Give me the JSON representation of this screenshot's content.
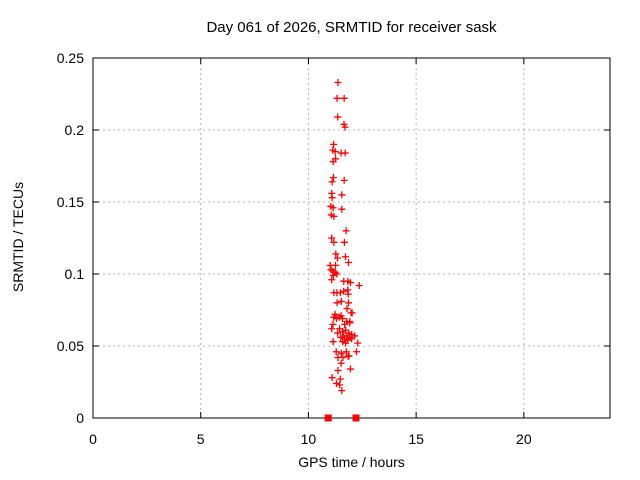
{
  "window": {
    "background": "#ffffff"
  },
  "chart_data": {
    "type": "scatter",
    "title": "Day 061 of 2026, SRMTID for receiver sask",
    "xlabel": "GPS time / hours",
    "ylabel": "SRMTID / TECUs",
    "xlim": [
      0,
      24
    ],
    "ylim": [
      0,
      0.25
    ],
    "xticks": {
      "values": [
        0,
        5,
        10,
        15,
        20
      ],
      "labels": [
        "0",
        "5",
        "10",
        "15",
        "20"
      ]
    },
    "yticks": {
      "values": [
        0,
        0.05,
        0.1,
        0.15,
        0.2,
        0.25
      ],
      "labels": [
        "0",
        "0.05",
        "0.1",
        "0.15",
        "0.2",
        "0.25"
      ]
    },
    "grid": true,
    "legend_position": "none",
    "series": [
      {
        "name": "srmtid-values",
        "marker": "plus",
        "color": "#ff0000",
        "points": [
          [
            11.37,
            0.233
          ],
          [
            11.33,
            0.222
          ],
          [
            11.66,
            0.222
          ],
          [
            11.36,
            0.209
          ],
          [
            11.65,
            0.204
          ],
          [
            11.7,
            0.202
          ],
          [
            11.17,
            0.19
          ],
          [
            11.13,
            0.186
          ],
          [
            11.24,
            0.185
          ],
          [
            11.52,
            0.184
          ],
          [
            11.71,
            0.184
          ],
          [
            11.26,
            0.18
          ],
          [
            11.15,
            0.178
          ],
          [
            11.16,
            0.167
          ],
          [
            11.1,
            0.164
          ],
          [
            11.66,
            0.165
          ],
          [
            11.08,
            0.156
          ],
          [
            11.1,
            0.153
          ],
          [
            11.55,
            0.155
          ],
          [
            11.04,
            0.147
          ],
          [
            11.15,
            0.146
          ],
          [
            11.55,
            0.145
          ],
          [
            11.06,
            0.141
          ],
          [
            11.18,
            0.14
          ],
          [
            11.75,
            0.13
          ],
          [
            11.08,
            0.125
          ],
          [
            11.18,
            0.122
          ],
          [
            11.67,
            0.122
          ],
          [
            11.27,
            0.114
          ],
          [
            11.35,
            0.111
          ],
          [
            11.72,
            0.112
          ],
          [
            11.86,
            0.108
          ],
          [
            11.01,
            0.106
          ],
          [
            11.26,
            0.106
          ],
          [
            11.05,
            0.103
          ],
          [
            11.13,
            0.102
          ],
          [
            11.24,
            0.101
          ],
          [
            11.32,
            0.1
          ],
          [
            11.16,
            0.099
          ],
          [
            11.08,
            0.096
          ],
          [
            11.64,
            0.095
          ],
          [
            11.83,
            0.095
          ],
          [
            11.95,
            0.094
          ],
          [
            12.36,
            0.092
          ],
          [
            11.18,
            0.087
          ],
          [
            11.32,
            0.087
          ],
          [
            11.48,
            0.087
          ],
          [
            11.64,
            0.088
          ],
          [
            11.83,
            0.089
          ],
          [
            11.85,
            0.086
          ],
          [
            11.33,
            0.08
          ],
          [
            11.53,
            0.081
          ],
          [
            11.86,
            0.08
          ],
          [
            11.79,
            0.076
          ],
          [
            11.98,
            0.073
          ],
          [
            12.03,
            0.073
          ],
          [
            11.24,
            0.072
          ],
          [
            11.52,
            0.071
          ],
          [
            11.18,
            0.07
          ],
          [
            11.3,
            0.069
          ],
          [
            11.44,
            0.07
          ],
          [
            11.58,
            0.069
          ],
          [
            11.78,
            0.067
          ],
          [
            11.92,
            0.067
          ],
          [
            11.14,
            0.065
          ],
          [
            11.68,
            0.065
          ],
          [
            11.92,
            0.066
          ],
          [
            11.08,
            0.062
          ],
          [
            11.45,
            0.062
          ],
          [
            11.73,
            0.061
          ],
          [
            11.59,
            0.06
          ],
          [
            11.87,
            0.059
          ],
          [
            11.36,
            0.059
          ],
          [
            12.01,
            0.058
          ],
          [
            11.64,
            0.057
          ],
          [
            11.78,
            0.057
          ],
          [
            12.15,
            0.057
          ],
          [
            11.92,
            0.056
          ],
          [
            11.5,
            0.056
          ],
          [
            11.68,
            0.055
          ],
          [
            12.01,
            0.055
          ],
          [
            11.82,
            0.054
          ],
          [
            11.59,
            0.053
          ],
          [
            11.15,
            0.053
          ],
          [
            11.73,
            0.052
          ],
          [
            12.29,
            0.052
          ],
          [
            11.29,
            0.046
          ],
          [
            11.53,
            0.045
          ],
          [
            11.76,
            0.046
          ],
          [
            12.23,
            0.046
          ],
          [
            11.37,
            0.042
          ],
          [
            11.6,
            0.042
          ],
          [
            11.84,
            0.043
          ],
          [
            11.88,
            0.043
          ],
          [
            11.52,
            0.038
          ],
          [
            11.95,
            0.034
          ],
          [
            11.37,
            0.033
          ],
          [
            11.1,
            0.028
          ],
          [
            11.48,
            0.027
          ],
          [
            11.3,
            0.024
          ],
          [
            11.45,
            0.023
          ],
          [
            11.55,
            0.019
          ]
        ]
      },
      {
        "name": "zero-value-flags",
        "marker": "filled-square",
        "color": "#ff0000",
        "points": [
          [
            10.92,
            0
          ],
          [
            12.21,
            0
          ]
        ]
      }
    ]
  },
  "styles": {
    "marker_color": "#ff0000",
    "grid_color": "#b3b3b3",
    "axis_color": "#000000",
    "text_color": "#000000"
  }
}
